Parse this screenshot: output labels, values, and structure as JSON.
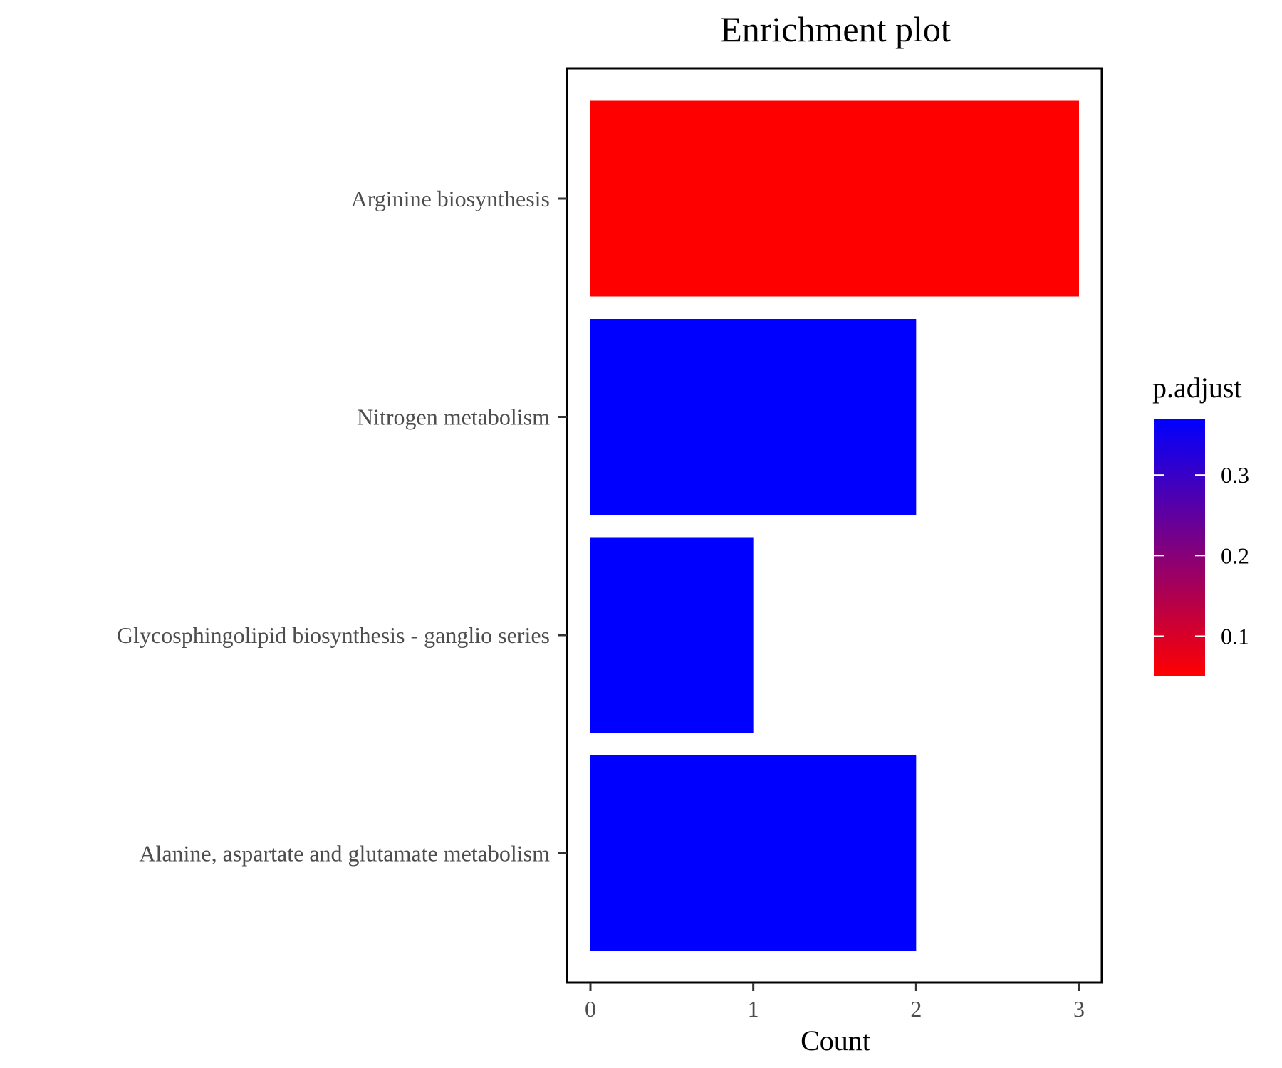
{
  "chart_data": {
    "type": "bar",
    "orientation": "horizontal",
    "title": "Enrichment plot",
    "xlabel": "Count",
    "ylabel": "",
    "xlim": [
      0,
      3
    ],
    "x_ticks": [
      "0",
      "1",
      "2",
      "3"
    ],
    "categories": [
      "Arginine biosynthesis",
      "Nitrogen metabolism",
      "Glycosphingolipid biosynthesis - ganglio series",
      "Alanine, aspartate and glutamate metabolism"
    ],
    "values": [
      3,
      2,
      1,
      2
    ],
    "bar_colors": [
      "#ff0000",
      "#0000ff",
      "#0000ff",
      "#0000ff"
    ],
    "legend": {
      "title": "p.adjust",
      "placement": "right",
      "ticks": [
        "0.3",
        "0.2",
        "0.1"
      ],
      "tick_values": [
        0.3,
        0.2,
        0.1
      ],
      "range": [
        0.05,
        0.37
      ],
      "color_low": "#ff0000",
      "color_high": "#0000ff"
    },
    "grid": false
  }
}
